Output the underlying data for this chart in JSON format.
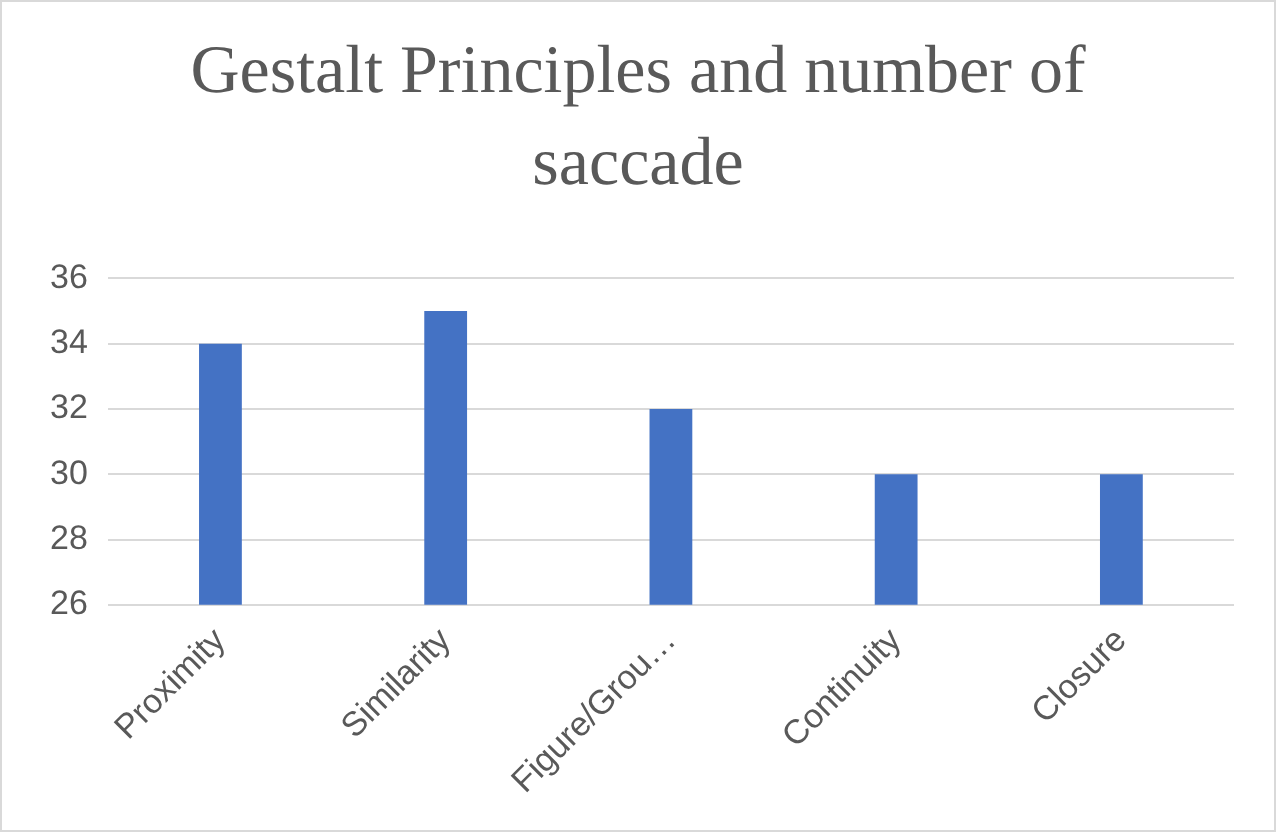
{
  "chart_data": {
    "type": "bar",
    "title": "Gestalt Principles and number of saccade",
    "categories": [
      "Proximity",
      "Similarity",
      "Figure/Grou…",
      "Continuity",
      "Closure"
    ],
    "values": [
      34,
      35,
      32,
      30,
      30
    ],
    "color": "#4472c4",
    "ylim": [
      26,
      36
    ],
    "yticks": [
      26,
      28,
      30,
      32,
      34,
      36
    ],
    "grid": "y",
    "legend": false
  }
}
